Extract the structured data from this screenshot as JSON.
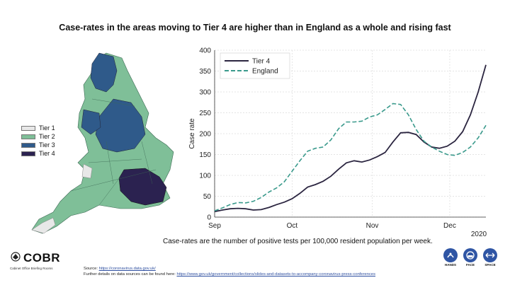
{
  "title": "Case-rates in the areas moving to Tier 4 are higher than in England as a whole and rising fast",
  "map_legend": [
    {
      "label": "Tier 1",
      "color": "#e8e8e8"
    },
    {
      "label": "Tier 2",
      "color": "#7fbf98"
    },
    {
      "label": "Tier 3",
      "color": "#2f5a8a"
    },
    {
      "label": "Tier 4",
      "color": "#2b2250"
    }
  ],
  "footnote": "Case-rates are the number of positive tests per 100,000 resident population per week.",
  "brand": {
    "name": "COBR",
    "subtitle": "Cabinet Office Briefing Rooms"
  },
  "sources": {
    "source_label": "Source:",
    "source_link": "https://coronavirus.data.gov.uk/",
    "further_label": "Further details on data sources can be found here:",
    "further_link": "https://www.gov.uk/government/collections/slides-and-datasets-to-accompany-coronavirus-press-conferences"
  },
  "hfs": [
    "HANDS",
    "FACE",
    "SPACE"
  ],
  "chart_data": {
    "type": "line",
    "ylabel": "Case rate",
    "ylim": [
      0,
      400
    ],
    "yticks": [
      0,
      50,
      100,
      150,
      200,
      250,
      300,
      350,
      400
    ],
    "x_ticks": [
      {
        "label": "Sep",
        "day": 0
      },
      {
        "label": "Oct",
        "day": 30
      },
      {
        "label": "Nov",
        "day": 61
      },
      {
        "label": "Dec",
        "day": 91
      }
    ],
    "x_year_label": "2020",
    "xlim": [
      0,
      105
    ],
    "grid": true,
    "legend_position": "top-left",
    "series": [
      {
        "name": "Tier 4",
        "color": "#2b2540",
        "style": "solid",
        "points": [
          [
            0,
            13
          ],
          [
            3,
            17
          ],
          [
            6,
            20
          ],
          [
            9,
            21
          ],
          [
            12,
            20
          ],
          [
            15,
            17
          ],
          [
            18,
            18
          ],
          [
            21,
            23
          ],
          [
            24,
            30
          ],
          [
            27,
            36
          ],
          [
            30,
            44
          ],
          [
            33,
            57
          ],
          [
            36,
            72
          ],
          [
            39,
            78
          ],
          [
            42,
            86
          ],
          [
            45,
            98
          ],
          [
            48,
            115
          ],
          [
            51,
            130
          ],
          [
            54,
            135
          ],
          [
            57,
            132
          ],
          [
            60,
            137
          ],
          [
            63,
            145
          ],
          [
            66,
            155
          ],
          [
            69,
            180
          ],
          [
            72,
            202
          ],
          [
            75,
            203
          ],
          [
            78,
            198
          ],
          [
            81,
            180
          ],
          [
            84,
            168
          ],
          [
            87,
            165
          ],
          [
            90,
            170
          ],
          [
            93,
            182
          ],
          [
            96,
            205
          ],
          [
            99,
            245
          ],
          [
            102,
            300
          ],
          [
            105,
            365
          ]
        ]
      },
      {
        "name": "England",
        "color": "#3a9a8c",
        "style": "dashed",
        "points": [
          [
            0,
            15
          ],
          [
            3,
            22
          ],
          [
            6,
            30
          ],
          [
            9,
            35
          ],
          [
            12,
            34
          ],
          [
            15,
            38
          ],
          [
            18,
            47
          ],
          [
            21,
            60
          ],
          [
            24,
            70
          ],
          [
            27,
            85
          ],
          [
            30,
            110
          ],
          [
            33,
            135
          ],
          [
            36,
            158
          ],
          [
            39,
            165
          ],
          [
            42,
            168
          ],
          [
            45,
            185
          ],
          [
            48,
            212
          ],
          [
            51,
            228
          ],
          [
            54,
            228
          ],
          [
            57,
            230
          ],
          [
            60,
            240
          ],
          [
            63,
            245
          ],
          [
            66,
            258
          ],
          [
            69,
            272
          ],
          [
            72,
            270
          ],
          [
            75,
            245
          ],
          [
            78,
            210
          ],
          [
            81,
            182
          ],
          [
            84,
            168
          ],
          [
            87,
            158
          ],
          [
            90,
            150
          ],
          [
            93,
            148
          ],
          [
            96,
            155
          ],
          [
            99,
            168
          ],
          [
            102,
            190
          ],
          [
            105,
            220
          ]
        ]
      }
    ]
  }
}
